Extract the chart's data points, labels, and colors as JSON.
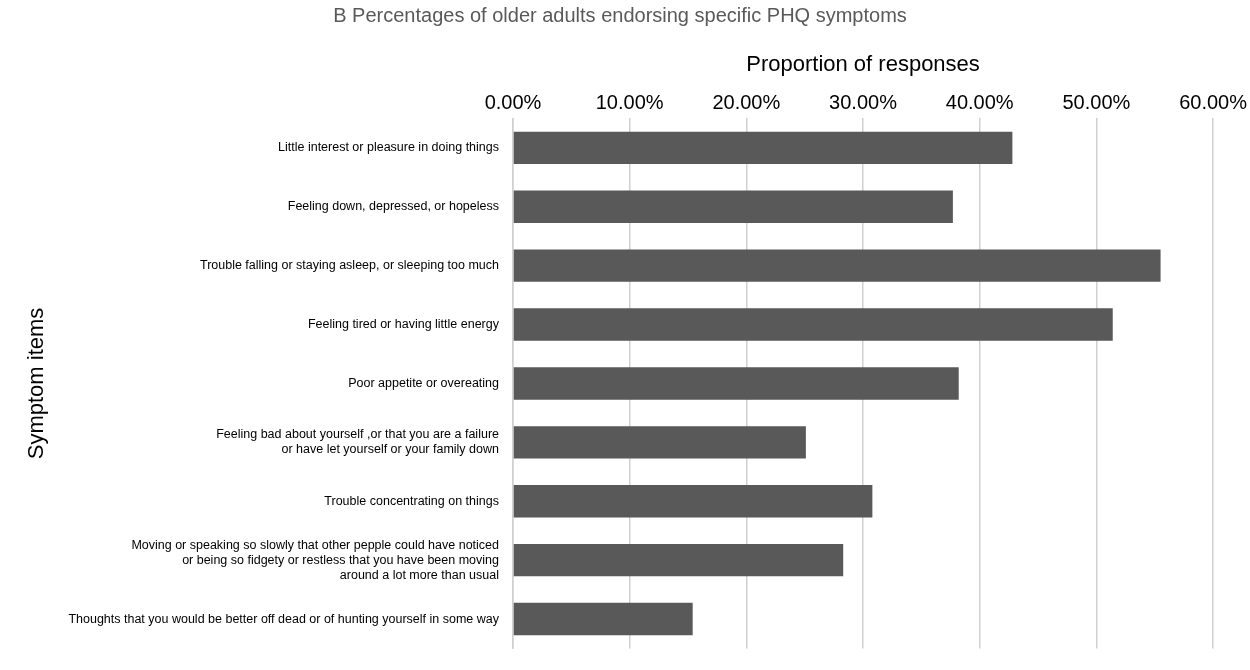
{
  "chart_data": {
    "type": "bar",
    "orientation": "horizontal",
    "title": "B Percentages of older adults endorsing specific PHQ symptoms",
    "xlabel": "Proportion of responses",
    "ylabel": "Symptom items",
    "categories": [
      "Little interest or pleasure in doing things",
      "Feeling down, depressed, or hopeless",
      "Trouble falling or staying asleep, or sleeping too much",
      "Feeling tired or having little energy",
      "Poor appetite or overeating",
      "Feeling bad about yourself ,or that you are a failure\nor have let yourself or your family down",
      "Trouble concentrating on things",
      "Moving or speaking so slowly that other pepple could have noticed\nor being so fidgety or restless that you have been moving\naround a lot more than usual",
      "Thoughts that you would be better off dead or of hunting yourself in some way"
    ],
    "values": [
      42.8,
      37.7,
      55.5,
      51.4,
      38.2,
      25.1,
      30.8,
      28.3,
      15.4
    ],
    "color": "#595959",
    "xlim": [
      0,
      60
    ],
    "xticks": [
      {
        "value": 0,
        "label": "0.00%"
      },
      {
        "value": 10,
        "label": "10.00%"
      },
      {
        "value": 20,
        "label": "20.00%"
      },
      {
        "value": 30,
        "label": "30.00%"
      },
      {
        "value": 40,
        "label": "40.00%"
      },
      {
        "value": 50,
        "label": "50.00%"
      },
      {
        "value": 60,
        "label": "60.00%"
      }
    ],
    "grid": "x"
  }
}
